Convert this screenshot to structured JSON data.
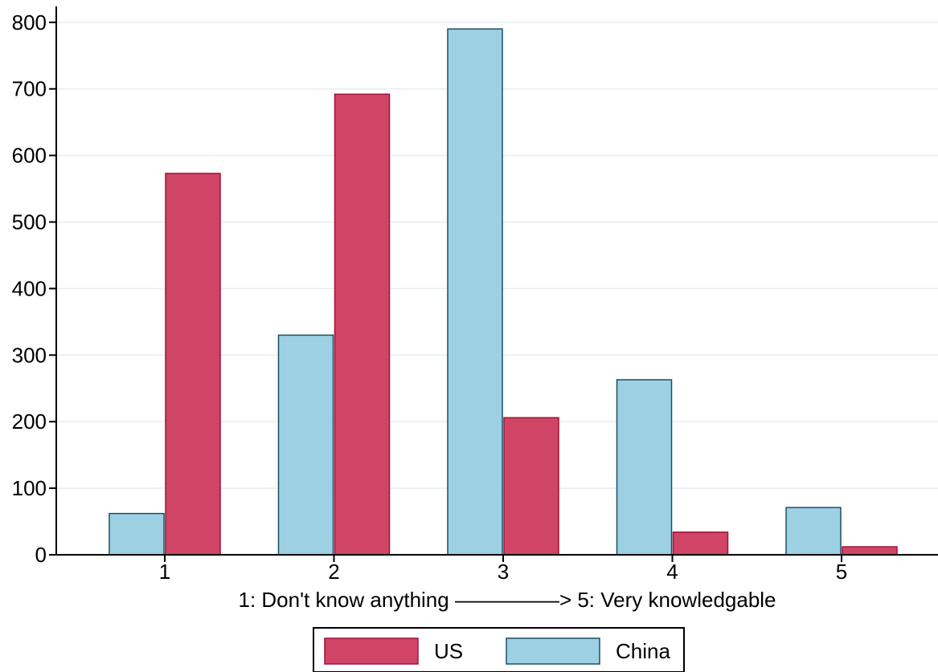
{
  "chart_data": {
    "type": "bar",
    "categories": [
      "1",
      "2",
      "3",
      "4",
      "5"
    ],
    "series": [
      {
        "name": "China",
        "values": [
          62,
          330,
          790,
          263,
          71
        ],
        "color": "#9dd0e3",
        "stroke": "#1b4f66"
      },
      {
        "name": "US",
        "values": [
          573,
          692,
          206,
          34,
          12
        ],
        "color": "#d04565",
        "stroke": "#a01238"
      }
    ],
    "legend_order": [
      "US",
      "China"
    ],
    "title": "",
    "xlabel": "1: Don't know anything —————> 5: Very knowledgable",
    "ylabel": "",
    "ylim": [
      0,
      820
    ],
    "yticks": [
      0,
      100,
      200,
      300,
      400,
      500,
      600,
      700,
      800
    ],
    "grid": true,
    "legend_position": "bottom-center"
  }
}
